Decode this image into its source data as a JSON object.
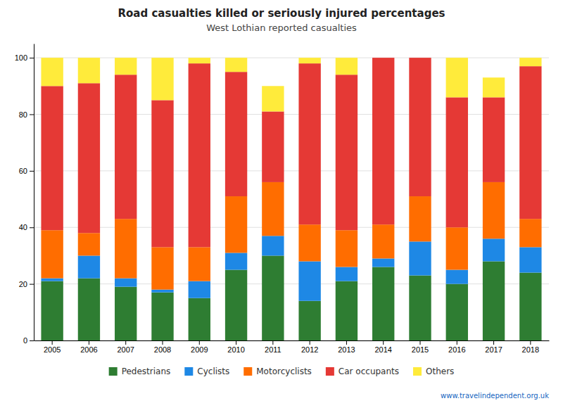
{
  "chart_data": {
    "type": "bar",
    "stacked": true,
    "title": "Road casualties killed or seriously injured percentages",
    "subtitle": "West Lothian reported casualties",
    "categories": [
      "2005",
      "2006",
      "2007",
      "2008",
      "2009",
      "2010",
      "2011",
      "2012",
      "2013",
      "2014",
      "2015",
      "2016",
      "2017",
      "2018"
    ],
    "series": [
      {
        "name": "Pedestrians",
        "color": "#2e7d32",
        "values": [
          21,
          22,
          19,
          17,
          15,
          25,
          30,
          14,
          21,
          26,
          23,
          20,
          28,
          24
        ]
      },
      {
        "name": "Cyclists",
        "color": "#1e88e5",
        "values": [
          1,
          8,
          3,
          1,
          6,
          6,
          7,
          14,
          5,
          3,
          12,
          5,
          8,
          9
        ]
      },
      {
        "name": "Motorcyclists",
        "color": "#ff6d00",
        "values": [
          17,
          8,
          21,
          15,
          12,
          20,
          19,
          13,
          13,
          12,
          16,
          15,
          20,
          10
        ]
      },
      {
        "name": "Car occupants",
        "color": "#e53935",
        "values": [
          51,
          53,
          51,
          52,
          65,
          44,
          25,
          57,
          55,
          59,
          49,
          46,
          30,
          54
        ]
      },
      {
        "name": "Others",
        "color": "#ffeb3b",
        "values": [
          10,
          9,
          6,
          15,
          2,
          5,
          9,
          2,
          6,
          0,
          0,
          14,
          7,
          3
        ]
      }
    ],
    "ylim": [
      0,
      105
    ],
    "yticks": [
      0,
      20,
      40,
      60,
      80,
      100
    ],
    "grid": true,
    "legend": "bottom",
    "annotations": [
      "www.travelindependent.org.uk"
    ]
  }
}
